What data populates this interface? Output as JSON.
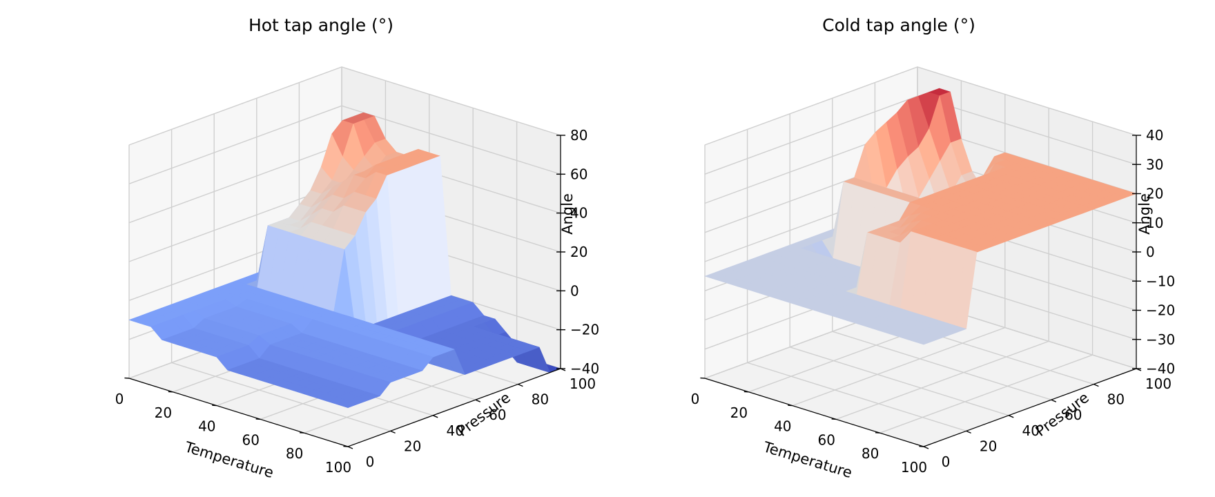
{
  "chart_data": [
    {
      "type": "surface3d",
      "title": "Hot tap angle (°)",
      "xlabel": "Temperature",
      "ylabel": "Pressure",
      "zlabel": "Angle",
      "xlim": [
        0,
        100
      ],
      "ylim": [
        0,
        100
      ],
      "zlim": [
        -40,
        80
      ],
      "xticks": [
        "0",
        "20",
        "40",
        "60",
        "80",
        "100"
      ],
      "yticks": [
        "0",
        "20",
        "40",
        "60",
        "80",
        "100"
      ],
      "zticks": [
        "−40",
        "−20",
        "0",
        "20",
        "40",
        "60",
        "80"
      ],
      "zticks_values": [
        -40,
        -20,
        0,
        20,
        40,
        60,
        80
      ],
      "colormap": "coolwarm",
      "grid": true,
      "x": [
        0,
        5,
        10,
        15,
        20,
        25,
        30,
        35,
        40,
        45,
        50,
        55,
        60,
        65,
        70,
        75,
        80,
        85,
        90,
        95,
        100
      ],
      "y": [
        0,
        5,
        10,
        15,
        20,
        25,
        30,
        35,
        40,
        45,
        50,
        55,
        60,
        65,
        70,
        75,
        80,
        85,
        90,
        95,
        100
      ],
      "z_rows_by_pressure": [
        [
          -10,
          -10,
          -10,
          -15,
          -15,
          -15,
          -15,
          -15,
          -15,
          -20,
          -20,
          -20,
          -20,
          -20,
          -20,
          -20,
          -20,
          -20,
          -20,
          -20,
          -20
        ],
        [
          -10,
          -10,
          -10,
          -15,
          -15,
          -15,
          -15,
          -15,
          -15,
          -20,
          -20,
          -20,
          -20,
          -20,
          -20,
          -20,
          -20,
          -20,
          -20,
          -20,
          -20
        ],
        [
          -10,
          -10,
          -10,
          -15,
          -15,
          -15,
          -15,
          -15,
          -15,
          -20,
          -20,
          -20,
          -20,
          -20,
          -20,
          -20,
          -20,
          -20,
          -20,
          -20,
          -20
        ],
        [
          -10,
          -10,
          -10,
          -15,
          -15,
          -15,
          -15,
          -15,
          -15,
          -20,
          -20,
          -20,
          -20,
          -20,
          -20,
          -20,
          -20,
          -20,
          -20,
          -20,
          -20
        ],
        [
          -10,
          -10,
          -10,
          -12,
          -12,
          -12,
          -12,
          -12,
          -12,
          -15,
          -15,
          -15,
          -15,
          -15,
          -15,
          -15,
          -15,
          -15,
          -15,
          -15,
          -15
        ],
        [
          -10,
          -10,
          -10,
          -12,
          -12,
          -12,
          -12,
          -12,
          -12,
          -15,
          -15,
          -15,
          -15,
          -15,
          -15,
          -15,
          -15,
          -15,
          -15,
          -15,
          -15
        ],
        [
          -10,
          -10,
          -10,
          -12,
          -12,
          -12,
          -12,
          -12,
          -12,
          -15,
          -15,
          -15,
          -15,
          -15,
          -15,
          -15,
          -15,
          -15,
          -15,
          -15,
          -15
        ],
        [
          -10,
          -10,
          -10,
          -12,
          -12,
          -12,
          -12,
          -12,
          -12,
          -15,
          -15,
          -15,
          -15,
          -15,
          -15,
          -15,
          -15,
          -15,
          -15,
          -15,
          -15
        ],
        [
          -10,
          -10,
          -10,
          -10,
          -10,
          -10,
          -10,
          -10,
          -10,
          -10,
          -10,
          -10,
          -10,
          -10,
          -10,
          -10,
          -10,
          -10,
          -10,
          -10,
          -10
        ],
        [
          -10,
          -10,
          -10,
          -10,
          -10,
          -10,
          -10,
          -10,
          -10,
          -10,
          -10,
          -10,
          -10,
          -10,
          -10,
          -10,
          -10,
          -10,
          -10,
          -10,
          -10
        ],
        [
          -10,
          -10,
          -10,
          -10,
          -10,
          -10,
          -10,
          -10,
          -10,
          -10,
          -10,
          -10,
          -10,
          -10,
          -10,
          -10,
          -10,
          -10,
          -10,
          -10,
          -10
        ],
        [
          -10,
          -10,
          20,
          20,
          20,
          20,
          20,
          20,
          20,
          20,
          -20,
          -20,
          -20,
          -25,
          -25,
          -25,
          -25,
          -25,
          -25,
          -25,
          -25
        ],
        [
          -10,
          -10,
          20,
          20,
          20,
          25,
          25,
          25,
          25,
          25,
          -20,
          -20,
          -20,
          -25,
          -25,
          -25,
          -25,
          -25,
          -25,
          -25,
          -25
        ],
        [
          -10,
          -10,
          20,
          20,
          25,
          30,
          30,
          35,
          35,
          35,
          -20,
          -20,
          -20,
          -25,
          -25,
          -25,
          -25,
          -25,
          -25,
          -25,
          -25
        ],
        [
          -10,
          -10,
          25,
          25,
          30,
          35,
          35,
          40,
          40,
          40,
          -20,
          -20,
          -20,
          -25,
          -25,
          -25,
          -25,
          -25,
          -25,
          -25,
          -25
        ],
        [
          -10,
          -10,
          30,
          30,
          35,
          40,
          45,
          45,
          50,
          50,
          -20,
          -20,
          -20,
          -25,
          -25,
          -25,
          -25,
          -25,
          -25,
          -25,
          -25
        ],
        [
          -10,
          -10,
          40,
          35,
          35,
          40,
          45,
          50,
          50,
          50,
          -20,
          -20,
          -20,
          -25,
          -25,
          -25,
          -25,
          -25,
          -25,
          -25,
          -25
        ],
        [
          -10,
          -10,
          55,
          45,
          40,
          40,
          45,
          50,
          50,
          50,
          -20,
          -20,
          -20,
          -25,
          -25,
          -25,
          -25,
          -25,
          -25,
          -25,
          -25
        ],
        [
          -10,
          -10,
          60,
          60,
          45,
          40,
          45,
          50,
          50,
          50,
          -20,
          -20,
          -20,
          -25,
          -25,
          -25,
          -25,
          -25,
          -25,
          -25,
          -25
        ],
        [
          -10,
          -10,
          60,
          60,
          50,
          45,
          45,
          50,
          50,
          50,
          -20,
          -20,
          -20,
          -25,
          -25,
          -30,
          -35,
          -40,
          -40,
          -40,
          -40
        ],
        [
          -10,
          -10,
          60,
          60,
          50,
          45,
          45,
          50,
          50,
          50,
          -20,
          -20,
          -20,
          -25,
          -25,
          -30,
          -35,
          -40,
          -40,
          -40,
          -40
        ]
      ]
    },
    {
      "type": "surface3d",
      "title": "Cold tap angle (°)",
      "xlabel": "Temperature",
      "ylabel": "Pressure",
      "zlabel": "Angle",
      "xlim": [
        0,
        100
      ],
      "ylim": [
        0,
        100
      ],
      "zlim": [
        -40,
        40
      ],
      "xticks": [
        "0",
        "20",
        "40",
        "60",
        "80",
        "100"
      ],
      "yticks": [
        "0",
        "20",
        "40",
        "60",
        "80",
        "100"
      ],
      "zticks": [
        "−40",
        "−30",
        "−20",
        "−10",
        "0",
        "10",
        "20",
        "30",
        "40"
      ],
      "zticks_values": [
        -40,
        -30,
        -20,
        -10,
        0,
        10,
        20,
        30,
        40
      ],
      "colormap": "coolwarm",
      "grid": true,
      "x": [
        0,
        5,
        10,
        15,
        20,
        25,
        30,
        35,
        40,
        45,
        50,
        55,
        60,
        65,
        70,
        75,
        80,
        85,
        90,
        95,
        100
      ],
      "y": [
        0,
        5,
        10,
        15,
        20,
        25,
        30,
        35,
        40,
        45,
        50,
        55,
        60,
        65,
        70,
        75,
        80,
        85,
        90,
        95,
        100
      ],
      "z_rows_by_pressure": [
        [
          -5,
          -5,
          -5,
          -5,
          -5,
          -5,
          -5,
          -5,
          -5,
          -5,
          -5,
          -5,
          -5,
          -5,
          -5,
          -5,
          -5,
          -5,
          -5,
          -5,
          -5
        ],
        [
          -5,
          -5,
          -5,
          -5,
          -5,
          -5,
          -5,
          -5,
          -5,
          -5,
          -5,
          -5,
          -5,
          -5,
          -5,
          -5,
          -5,
          -5,
          -5,
          -5,
          -5
        ],
        [
          -5,
          -5,
          -5,
          -5,
          -5,
          -5,
          -5,
          -5,
          -5,
          -5,
          -5,
          -5,
          -5,
          -5,
          -5,
          -5,
          -5,
          -5,
          -5,
          -5,
          -5
        ],
        [
          -5,
          -5,
          -5,
          -5,
          -5,
          -5,
          -5,
          -5,
          -5,
          -5,
          -5,
          -5,
          -5,
          -5,
          -5,
          -5,
          -5,
          -5,
          -5,
          -5,
          -5
        ],
        [
          -5,
          -5,
          -5,
          -5,
          -5,
          -5,
          -5,
          -5,
          -5,
          -5,
          -5,
          -5,
          -5,
          -5,
          -5,
          -5,
          -5,
          -5,
          -5,
          -5,
          -5
        ],
        [
          -5,
          -5,
          -5,
          -5,
          -5,
          -5,
          -5,
          -5,
          -5,
          -5,
          15,
          15,
          15,
          15,
          20,
          20,
          20,
          20,
          20,
          20,
          20
        ],
        [
          -5,
          -5,
          -5,
          -5,
          -5,
          -5,
          -5,
          -5,
          -5,
          -5,
          15,
          15,
          15,
          18,
          20,
          20,
          20,
          20,
          20,
          20,
          20
        ],
        [
          -5,
          -5,
          -5,
          -5,
          -5,
          -5,
          -5,
          -5,
          -5,
          -5,
          15,
          15,
          18,
          20,
          20,
          20,
          20,
          20,
          20,
          20,
          20
        ],
        [
          -5,
          -5,
          -5,
          -5,
          -5,
          -5,
          -5,
          -5,
          -5,
          -5,
          15,
          18,
          20,
          20,
          20,
          20,
          20,
          20,
          20,
          20,
          20
        ],
        [
          -5,
          -5,
          -10,
          -10,
          -10,
          -10,
          -10,
          -10,
          -10,
          -10,
          20,
          20,
          20,
          20,
          20,
          20,
          20,
          20,
          20,
          20,
          20
        ],
        [
          -5,
          -5,
          -10,
          -10,
          -10,
          -10,
          -10,
          -10,
          -10,
          -10,
          20,
          20,
          20,
          20,
          20,
          20,
          20,
          20,
          20,
          20,
          20
        ],
        [
          -5,
          -5,
          15,
          15,
          15,
          15,
          15,
          15,
          15,
          15,
          20,
          20,
          20,
          20,
          20,
          20,
          20,
          20,
          20,
          20,
          20
        ],
        [
          -5,
          -5,
          15,
          15,
          15,
          15,
          15,
          15,
          15,
          15,
          20,
          20,
          20,
          20,
          20,
          20,
          20,
          20,
          20,
          20,
          20
        ],
        [
          -5,
          -5,
          25,
          5,
          -10,
          -20,
          -25,
          -20,
          -10,
          -5,
          20,
          20,
          20,
          20,
          20,
          20,
          20,
          20,
          20,
          20,
          20
        ],
        [
          -5,
          -5,
          28,
          10,
          -5,
          -15,
          -20,
          -15,
          -5,
          0,
          20,
          20,
          20,
          20,
          20,
          20,
          20,
          20,
          20,
          20,
          20
        ],
        [
          -5,
          -5,
          30,
          15,
          0,
          -10,
          -15,
          -10,
          0,
          5,
          20,
          20,
          20,
          20,
          20,
          20,
          20,
          20,
          20,
          20,
          20
        ],
        [
          -5,
          -5,
          32,
          18,
          5,
          -5,
          -10,
          -5,
          5,
          10,
          20,
          20,
          20,
          20,
          20,
          20,
          20,
          20,
          20,
          20,
          20
        ],
        [
          -5,
          -5,
          35,
          20,
          10,
          0,
          -5,
          0,
          10,
          15,
          20,
          20,
          20,
          20,
          20,
          20,
          20,
          20,
          20,
          20,
          20
        ],
        [
          -5,
          -5,
          35,
          25,
          15,
          5,
          0,
          5,
          15,
          20,
          20,
          20,
          20,
          20,
          20,
          20,
          20,
          20,
          20,
          20,
          20
        ],
        [
          -5,
          -5,
          35,
          35,
          20,
          10,
          5,
          10,
          20,
          20,
          20,
          20,
          20,
          20,
          20,
          20,
          20,
          20,
          20,
          20,
          20
        ],
        [
          -5,
          -5,
          35,
          35,
          20,
          10,
          5,
          10,
          20,
          20,
          20,
          20,
          20,
          20,
          20,
          20,
          20,
          20,
          20,
          20,
          20
        ]
      ]
    }
  ]
}
